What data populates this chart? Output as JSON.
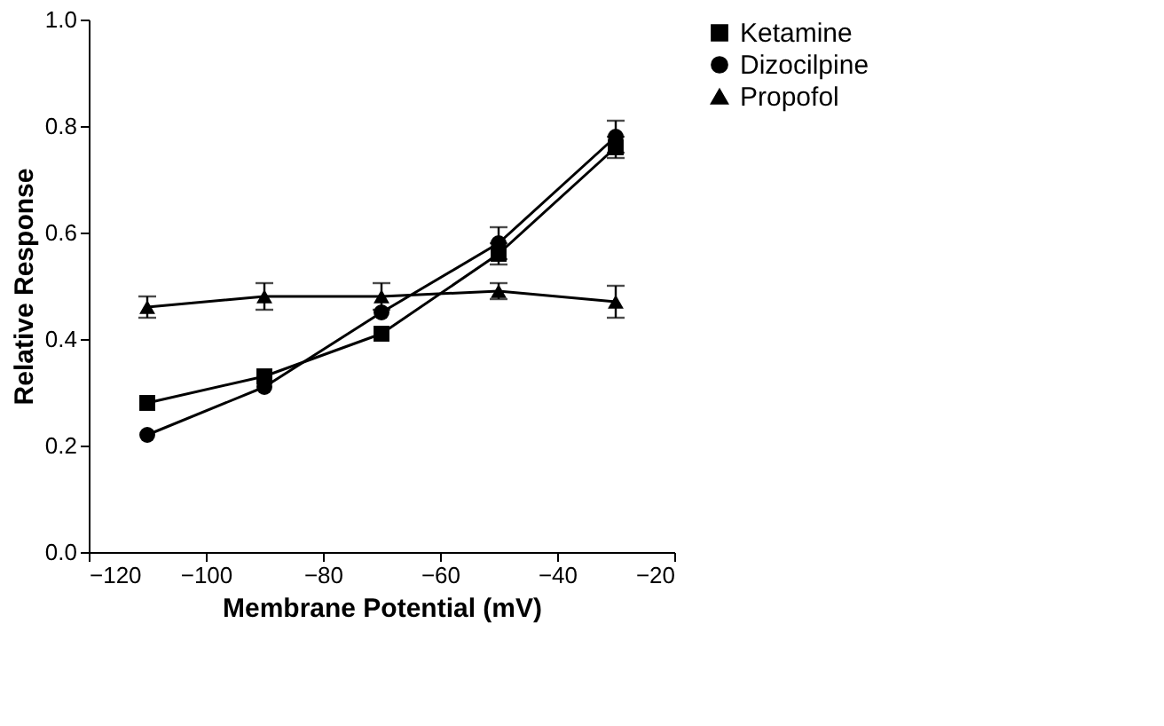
{
  "chart_data": {
    "type": "line",
    "xlabel": "Membrane Potential (mV)",
    "ylabel": "Relative Response",
    "x": [
      -110,
      -90,
      -70,
      -50,
      -30
    ],
    "series": [
      {
        "name": "Ketamine",
        "color": "#000000",
        "marker": "square",
        "values": [
          0.28,
          0.33,
          0.41,
          0.56,
          0.76
        ],
        "errors": [
          null,
          null,
          null,
          0.02,
          0.02
        ]
      },
      {
        "name": "Dizocilpine",
        "color": "#000000",
        "marker": "circle",
        "values": [
          0.22,
          0.31,
          0.45,
          0.58,
          0.78
        ],
        "errors": [
          null,
          null,
          null,
          0.03,
          0.03
        ]
      },
      {
        "name": "Propofol",
        "color": "#000000",
        "marker": "triangle",
        "values": [
          0.46,
          0.48,
          0.48,
          0.49,
          0.47
        ],
        "errors": [
          0.02,
          0.025,
          0.025,
          0.015,
          0.03
        ]
      }
    ],
    "xlim": [
      -120,
      -20
    ],
    "xticks": [
      -120,
      -100,
      -80,
      -60,
      -40,
      -20
    ],
    "ylim": [
      0,
      1
    ],
    "yticks": [
      {
        "value": 0,
        "label": "0.0"
      },
      0.2,
      0.4,
      0.6,
      0.8,
      {
        "value": 1,
        "label": "1.0"
      }
    ],
    "grid": false,
    "legend": "top right",
    "line_style": "solid"
  }
}
